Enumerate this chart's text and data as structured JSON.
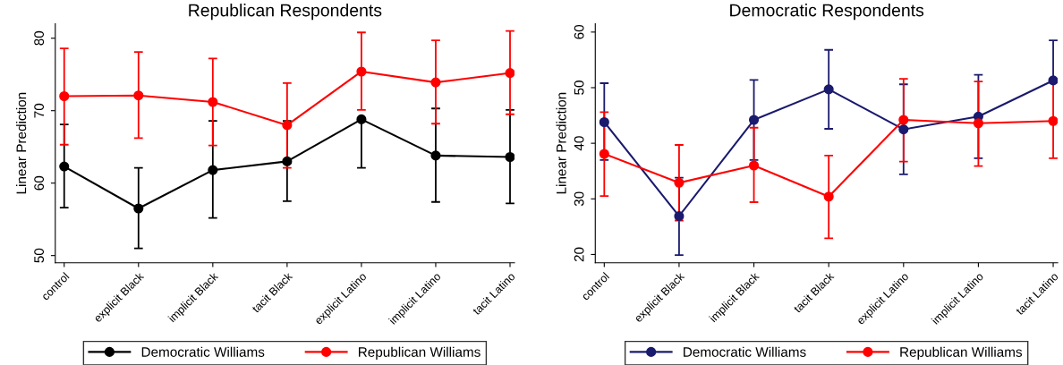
{
  "chart_data": [
    {
      "type": "line",
      "title": "Republican Respondents",
      "ylabel": "Linear Prediction",
      "categories": [
        "control",
        "explicit Black",
        "implicit Black",
        "tacit Black",
        "explicit Latino",
        "implicit Latino",
        "tacit Latino"
      ],
      "ylim": [
        49,
        82
      ],
      "yticks": [
        50,
        60,
        70,
        80
      ],
      "grid": false,
      "legend": "bottom",
      "marker": "circle",
      "line_style": "solid",
      "series": [
        {
          "name": "Democratic Williams",
          "color": "#000000",
          "values": [
            62.3,
            56.5,
            61.8,
            63.0,
            68.8,
            63.8,
            63.6
          ],
          "errors": [
            [
              56.6,
              68.1
            ],
            [
              51.0,
              62.1
            ],
            [
              55.2,
              68.6
            ],
            [
              57.5,
              68.6
            ],
            [
              62.1,
              68.8
            ],
            [
              57.4,
              70.3
            ],
            [
              57.2,
              70.1
            ]
          ]
        },
        {
          "name": "Republican Williams",
          "color": "#ff0000",
          "values": [
            72.0,
            72.1,
            71.2,
            68.0,
            75.4,
            73.9,
            75.2
          ],
          "errors": [
            [
              65.3,
              78.6
            ],
            [
              66.2,
              78.1
            ],
            [
              65.2,
              77.2
            ],
            [
              62.1,
              73.8
            ],
            [
              70.1,
              80.8
            ],
            [
              68.2,
              79.7
            ],
            [
              69.5,
              81.0
            ]
          ]
        }
      ]
    },
    {
      "type": "line",
      "title": "Democratic Respondents",
      "ylabel": "Linear Prediction",
      "categories": [
        "control",
        "explicit Black",
        "implicit Black",
        "tacit Black",
        "explicit Latino",
        "implicit Latino",
        "tacit Latino"
      ],
      "ylim": [
        18.5,
        61.5
      ],
      "yticks": [
        20,
        30,
        40,
        50,
        60
      ],
      "grid": false,
      "legend": "bottom",
      "marker": "circle",
      "line_style": "solid",
      "series": [
        {
          "name": "Democratic Williams",
          "color": "#1a1a6e",
          "values": [
            43.8,
            26.9,
            44.2,
            49.7,
            42.5,
            44.8,
            51.3
          ],
          "errors": [
            [
              37.0,
              50.8
            ],
            [
              19.9,
              33.8
            ],
            [
              37.0,
              51.4
            ],
            [
              42.6,
              56.8
            ],
            [
              34.4,
              50.6
            ],
            [
              37.3,
              52.3
            ],
            [
              51.3,
              58.5
            ]
          ]
        },
        {
          "name": "Republican Williams",
          "color": "#ff0000",
          "values": [
            38.1,
            32.9,
            36.0,
            30.4,
            44.2,
            43.6,
            44.0
          ],
          "errors": [
            [
              30.5,
              45.6
            ],
            [
              26.1,
              39.7
            ],
            [
              29.4,
              42.8
            ],
            [
              22.9,
              37.8
            ],
            [
              36.7,
              51.6
            ],
            [
              35.9,
              51.1
            ],
            [
              37.3,
              50.9
            ]
          ]
        }
      ]
    }
  ]
}
